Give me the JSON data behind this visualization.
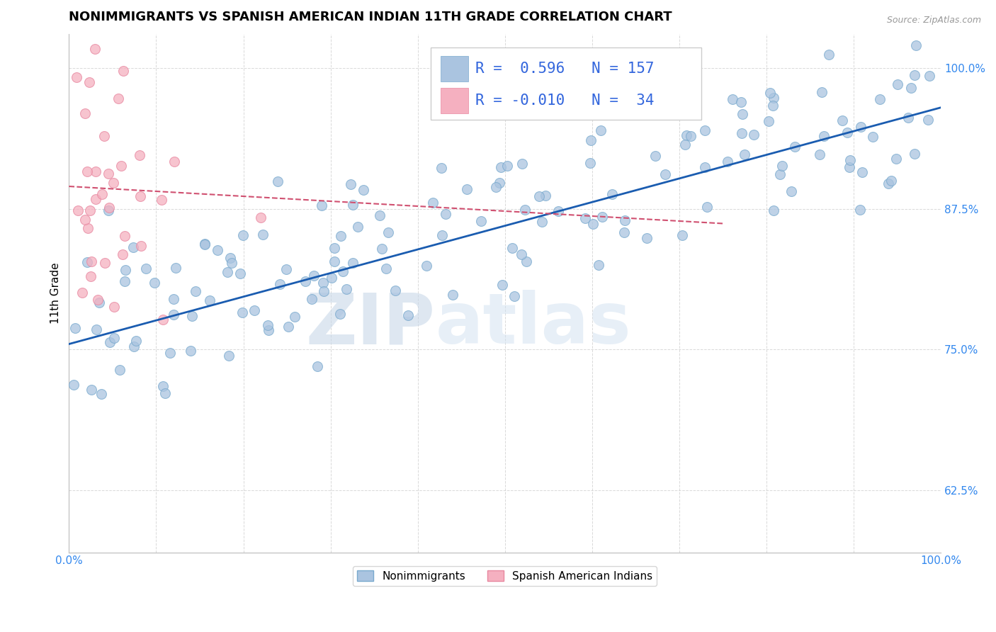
{
  "title": "NONIMMIGRANTS VS SPANISH AMERICAN INDIAN 11TH GRADE CORRELATION CHART",
  "source_text": "Source: ZipAtlas.com",
  "ylabel": "11th Grade",
  "watermark_zip": "ZIP",
  "watermark_atlas": "atlas",
  "xlim": [
    0.0,
    1.0
  ],
  "ylim": [
    0.57,
    1.03
  ],
  "yticks": [
    0.625,
    0.75,
    0.875,
    1.0
  ],
  "ytick_labels": [
    "62.5%",
    "75.0%",
    "87.5%",
    "100.0%"
  ],
  "xticks": [
    0.0,
    0.1,
    0.2,
    0.3,
    0.4,
    0.5,
    0.6,
    0.7,
    0.8,
    0.9,
    1.0
  ],
  "blue_color": "#aac4e0",
  "blue_edge_color": "#7aaace",
  "pink_color": "#f5b0c0",
  "pink_edge_color": "#e888a0",
  "trend_blue": "#1a5cb0",
  "trend_pink": "#d05070",
  "legend_r_blue": "0.596",
  "legend_n_blue": "157",
  "legend_r_pink": "-0.010",
  "legend_n_pink": "34",
  "legend_label_blue": "Nonimmigrants",
  "legend_label_pink": "Spanish American Indians",
  "blue_trend_x": [
    0.0,
    1.0
  ],
  "blue_trend_y": [
    0.755,
    0.965
  ],
  "pink_trend_x": [
    0.0,
    0.75
  ],
  "pink_trend_y": [
    0.895,
    0.862
  ],
  "grid_color": "#d0d0d0",
  "background_color": "#ffffff",
  "title_fontsize": 13,
  "axis_label_fontsize": 11,
  "tick_fontsize": 11,
  "source_fontsize": 9,
  "marker_size": 100
}
